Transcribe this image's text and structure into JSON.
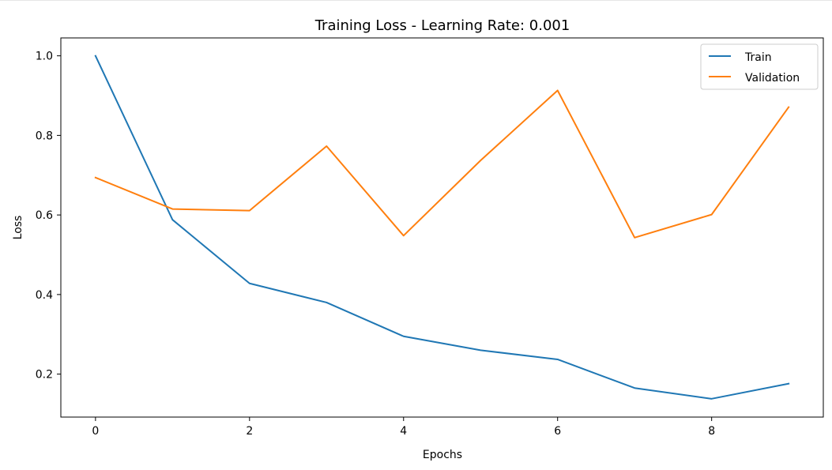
{
  "chart_data": {
    "type": "line",
    "title": "Training Loss - Learning Rate: 0.001",
    "xlabel": "Epochs",
    "ylabel": "Loss",
    "x": [
      0,
      1,
      2,
      3,
      4,
      5,
      6,
      7,
      8,
      9
    ],
    "xlim": [
      -0.45,
      9.45
    ],
    "ylim": [
      0.092,
      1.045
    ],
    "xticks": [
      0,
      2,
      4,
      6,
      8
    ],
    "xtick_labels": [
      "0",
      "2",
      "4",
      "6",
      "8"
    ],
    "yticks": [
      0.2,
      0.4,
      0.6,
      0.8,
      1.0
    ],
    "ytick_labels": [
      "0.2",
      "0.4",
      "0.6",
      "0.8",
      "1.0"
    ],
    "grid": false,
    "legend_position": "top-right",
    "series": [
      {
        "name": "Train",
        "color": "#1f77b4",
        "values": [
          1.0,
          0.588,
          0.428,
          0.38,
          0.295,
          0.26,
          0.237,
          0.165,
          0.138,
          0.176
        ]
      },
      {
        "name": "Validation",
        "color": "#ff7f0e",
        "values": [
          0.694,
          0.615,
          0.611,
          0.773,
          0.548,
          0.737,
          0.913,
          0.543,
          0.601,
          0.871
        ]
      }
    ]
  }
}
